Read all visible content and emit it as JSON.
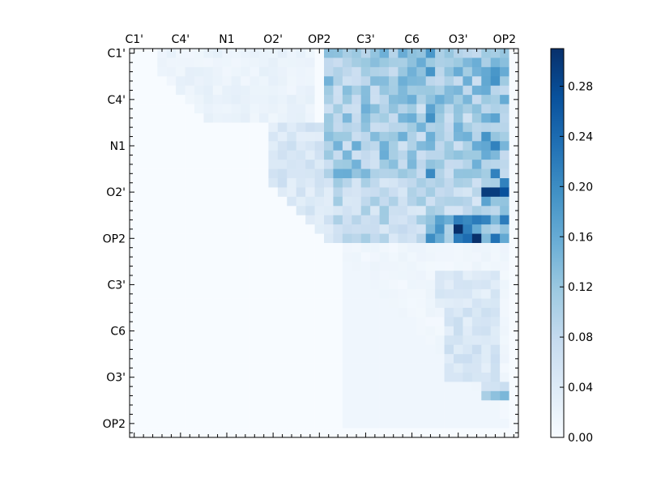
{
  "chart_data": {
    "type": "heatmap",
    "title": "",
    "xlabel": "",
    "ylabel": "",
    "n": 42,
    "x_tick_labels": [
      "C1'",
      "C4'",
      "N1",
      "O2'",
      "OP2",
      "C3'",
      "C6",
      "O3'",
      "OP2"
    ],
    "y_tick_labels": [
      "C1'",
      "C4'",
      "N1",
      "O2'",
      "OP2",
      "C3'",
      "C6",
      "O3'",
      "OP2"
    ],
    "label_indices": [
      0,
      5,
      10,
      15,
      20,
      25,
      30,
      35,
      40
    ],
    "colormap": "Blues",
    "color_stops": [
      "#f7fbff",
      "#deebf7",
      "#c6dbef",
      "#9ecae1",
      "#6baed6",
      "#4292c6",
      "#2171b5",
      "#08519c",
      "#08306b"
    ],
    "vmin": 0.0,
    "vmax": 0.31,
    "colorbar_ticks": [
      "0.00",
      "0.04",
      "0.08",
      "0.12",
      "0.16",
      "0.20",
      "0.24",
      "0.28"
    ],
    "colorbar_tick_values": [
      0.0,
      0.04,
      0.08,
      0.12,
      0.16,
      0.2,
      0.24,
      0.28
    ],
    "grid": false,
    "legend": "colorbar-right",
    "regions": [
      {
        "rows": [
          0,
          41
        ],
        "cols": [
          0,
          41
        ],
        "value": 0.0
      },
      {
        "upper_triangle": true,
        "rows": [
          0,
          19
        ],
        "cols": [
          22,
          41
        ],
        "value": 0.08
      },
      {
        "upper_triangle": true,
        "rows": [
          0,
          8
        ],
        "cols": [
          3,
          20
        ],
        "value": 0.02
      },
      {
        "upper_triangle": true,
        "rows": [
          8,
          21
        ],
        "cols": [
          15,
          22
        ],
        "value": 0.05
      },
      {
        "rows": [
          0,
          14
        ],
        "cols": [
          21,
          41
        ],
        "value": 0.11
      },
      {
        "rows": [
          18,
          21
        ],
        "cols": [
          22,
          41
        ],
        "value": 0.08
      },
      {
        "rows": [
          18,
          21
        ],
        "cols": [
          32,
          41
        ],
        "value": 0.16
      },
      {
        "rows": [
          19,
          21
        ],
        "cols": [
          35,
          38
        ],
        "value": 0.28
      },
      {
        "rows": [
          21,
          22
        ],
        "cols": [
          32,
          36
        ],
        "value": 0.2
      },
      {
        "rows": [
          21,
          41
        ],
        "cols": [
          23,
          41
        ],
        "value": 0.012
      },
      {
        "rows": [
          24,
          28
        ],
        "cols": [
          33,
          40
        ],
        "value": 0.04
      },
      {
        "rows": [
          28,
          36
        ],
        "cols": [
          34,
          40
        ],
        "value": 0.05
      },
      {
        "rows": [
          36,
          38
        ],
        "cols": [
          38,
          41
        ],
        "value": 0.1
      },
      {
        "rows": [
          0,
          19
        ],
        "cols": [
          38,
          40
        ],
        "value": 0.15
      },
      {
        "rows": [
          14,
          18
        ],
        "cols": [
          40,
          41
        ],
        "value": 0.2
      },
      {
        "rows": [
          15,
          16
        ],
        "cols": [
          38,
          41
        ],
        "value": 0.22
      },
      {
        "rows": [
          0,
          16
        ],
        "cols": [
          32,
          33
        ],
        "value": 0.15
      }
    ]
  }
}
